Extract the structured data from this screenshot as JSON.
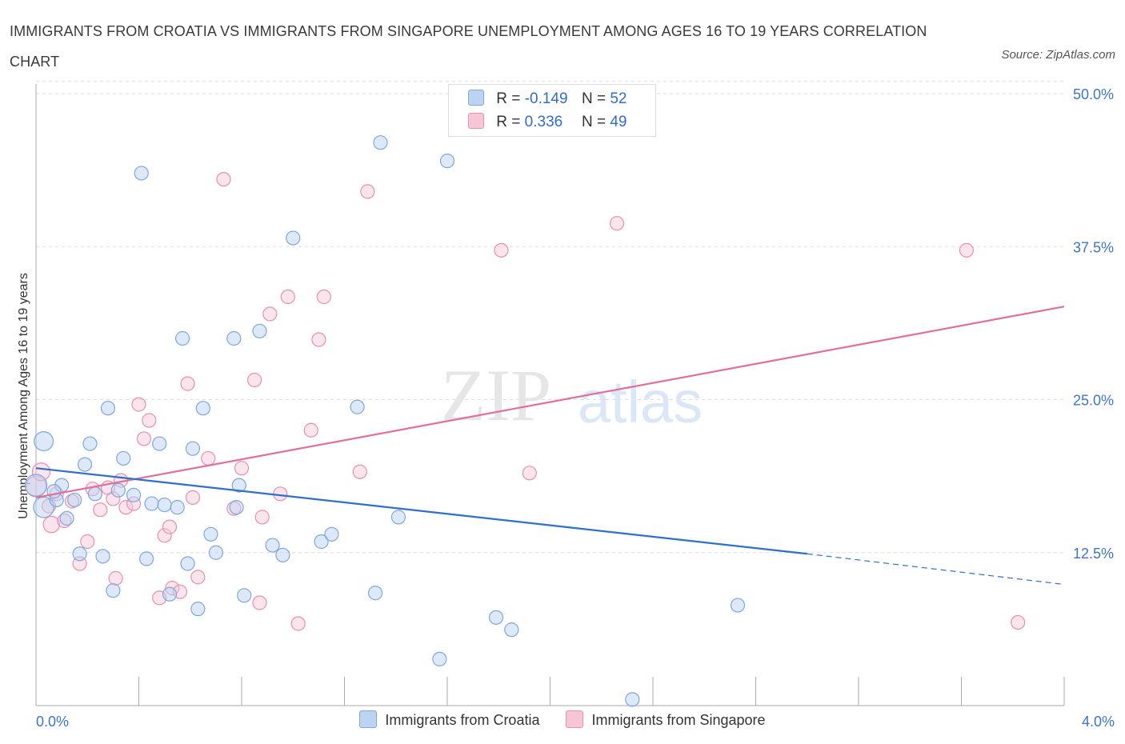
{
  "header": {
    "title": "IMMIGRANTS FROM CROATIA VS IMMIGRANTS FROM SINGAPORE UNEMPLOYMENT AMONG AGES 16 TO 19 YEARS CORRELATION CHART",
    "source": "Source: ZipAtlas.com"
  },
  "watermark": {
    "zip": "ZIP",
    "atlas": "atlas"
  },
  "stats": {
    "r_label": "R =",
    "n_label": "N =",
    "croatia": {
      "r": "-0.149",
      "n": "52"
    },
    "singapore": {
      "r": "0.336",
      "n": "49"
    }
  },
  "legend": {
    "croatia": "Immigrants from Croatia",
    "singapore": "Immigrants from Singapore"
  },
  "colors": {
    "croatia_fill": "#bcd3f2",
    "croatia_stroke": "#7ea7dc",
    "croatia_line": "#2f6fcc",
    "singapore_fill": "#f7c6d6",
    "singapore_stroke": "#e88fb0",
    "singapore_line": "#e0709a",
    "tick_label": "#3f74c9",
    "grid": "#dddddd"
  },
  "chart_data": {
    "type": "scatter",
    "title": "IMMIGRANTS FROM CROATIA VS IMMIGRANTS FROM SINGAPORE UNEMPLOYMENT AMONG AGES 16 TO 19 YEARS CORRELATION CHART",
    "xlabel": "",
    "ylabel": "Unemployment Among Ages 16 to 19 years",
    "xlim": [
      0,
      4.0
    ],
    "ylim": [
      0,
      50
    ],
    "x_tick_labels": [
      "0.0%",
      "4.0%"
    ],
    "y_ticks": [
      12.5,
      25.0,
      37.5,
      50.0
    ],
    "y_tick_labels": [
      "12.5%",
      "25.0%",
      "37.5%",
      "50.0%"
    ],
    "grid": "horizontal dashed",
    "legend_position": "bottom",
    "series": [
      {
        "name": "Immigrants from Croatia",
        "r": -0.149,
        "n": 52,
        "trend": {
          "x0": 0.0,
          "y0": 19.4,
          "x1": 3.0,
          "y1": 12.4,
          "dashed_to_x": 4.0,
          "dashed_to_y": 9.9
        },
        "points": [
          [
            0.0,
            18.0,
            1.6
          ],
          [
            0.03,
            21.6,
            1.4
          ],
          [
            0.03,
            16.2,
            1.5
          ],
          [
            0.08,
            16.8,
            1.0
          ],
          [
            0.1,
            18.0,
            1.0
          ],
          [
            0.12,
            15.3,
            1.0
          ],
          [
            0.15,
            16.8,
            1.0
          ],
          [
            0.17,
            12.4,
            1.0
          ],
          [
            0.19,
            19.7,
            1.0
          ],
          [
            0.21,
            21.4,
            1.0
          ],
          [
            0.23,
            17.3,
            1.0
          ],
          [
            0.26,
            12.2,
            1.0
          ],
          [
            0.28,
            24.3,
            1.0
          ],
          [
            0.3,
            9.4,
            1.0
          ],
          [
            0.32,
            17.6,
            1.0
          ],
          [
            0.34,
            20.2,
            1.0
          ],
          [
            0.38,
            17.2,
            1.0
          ],
          [
            0.41,
            43.5,
            1.0
          ],
          [
            0.43,
            12.0,
            1.0
          ],
          [
            0.45,
            16.5,
            1.0
          ],
          [
            0.48,
            21.4,
            1.0
          ],
          [
            0.5,
            16.4,
            1.0
          ],
          [
            0.52,
            9.1,
            1.0
          ],
          [
            0.55,
            16.2,
            1.0
          ],
          [
            0.57,
            30.0,
            1.0
          ],
          [
            0.59,
            11.6,
            1.0
          ],
          [
            0.61,
            21.0,
            1.0
          ],
          [
            0.63,
            7.9,
            1.0
          ],
          [
            0.65,
            24.3,
            1.0
          ],
          [
            0.68,
            14.0,
            1.0
          ],
          [
            0.7,
            12.5,
            1.0
          ],
          [
            0.77,
            30.0,
            1.0
          ],
          [
            0.79,
            18.0,
            1.0
          ],
          [
            0.81,
            9.0,
            1.0
          ],
          [
            0.87,
            30.6,
            1.0
          ],
          [
            0.92,
            13.1,
            1.0
          ],
          [
            0.96,
            12.3,
            1.0
          ],
          [
            1.0,
            38.2,
            1.0
          ],
          [
            1.11,
            13.4,
            1.0
          ],
          [
            1.15,
            14.0,
            1.0
          ],
          [
            1.25,
            24.4,
            1.0
          ],
          [
            1.32,
            9.2,
            1.0
          ],
          [
            1.34,
            46.0,
            1.0
          ],
          [
            1.41,
            15.4,
            1.0
          ],
          [
            1.57,
            3.8,
            1.0
          ],
          [
            1.6,
            44.5,
            1.0
          ],
          [
            1.79,
            7.2,
            1.0
          ],
          [
            1.85,
            6.2,
            1.0
          ],
          [
            2.32,
            0.5,
            1.0
          ],
          [
            2.73,
            8.2,
            1.0
          ],
          [
            0.78,
            16.2,
            1.0
          ],
          [
            0.07,
            17.5,
            1.0
          ]
        ]
      },
      {
        "name": "Immigrants from Singapore",
        "r": 0.336,
        "n": 49,
        "trend": {
          "x0": 0.0,
          "y0": 17.0,
          "x1": 4.0,
          "y1": 32.6
        },
        "points": [
          [
            0.0,
            17.9,
            1.5
          ],
          [
            0.02,
            19.1,
            1.3
          ],
          [
            0.06,
            14.8,
            1.2
          ],
          [
            0.08,
            17.3,
            1.0
          ],
          [
            0.11,
            15.1,
            1.0
          ],
          [
            0.14,
            16.7,
            1.0
          ],
          [
            0.17,
            11.6,
            1.0
          ],
          [
            0.2,
            13.4,
            1.0
          ],
          [
            0.22,
            17.7,
            1.0
          ],
          [
            0.25,
            16.0,
            1.0
          ],
          [
            0.28,
            17.8,
            1.0
          ],
          [
            0.3,
            16.9,
            1.0
          ],
          [
            0.31,
            10.4,
            1.0
          ],
          [
            0.33,
            18.4,
            1.0
          ],
          [
            0.35,
            16.2,
            1.0
          ],
          [
            0.38,
            16.5,
            1.0
          ],
          [
            0.4,
            24.6,
            1.0
          ],
          [
            0.42,
            21.8,
            1.0
          ],
          [
            0.44,
            23.3,
            1.0
          ],
          [
            0.48,
            8.8,
            1.0
          ],
          [
            0.5,
            13.9,
            1.0
          ],
          [
            0.52,
            14.6,
            1.0
          ],
          [
            0.53,
            9.6,
            1.0
          ],
          [
            0.56,
            9.3,
            1.0
          ],
          [
            0.59,
            26.3,
            1.0
          ],
          [
            0.61,
            17.0,
            1.0
          ],
          [
            0.63,
            10.5,
            1.0
          ],
          [
            0.67,
            20.2,
            1.0
          ],
          [
            0.73,
            43.0,
            1.0
          ],
          [
            0.77,
            16.1,
            1.0
          ],
          [
            0.8,
            19.4,
            1.0
          ],
          [
            0.85,
            26.6,
            1.0
          ],
          [
            0.87,
            8.4,
            1.0
          ],
          [
            0.88,
            15.4,
            1.0
          ],
          [
            0.91,
            32.0,
            1.0
          ],
          [
            0.95,
            17.3,
            1.0
          ],
          [
            0.98,
            33.4,
            1.0
          ],
          [
            1.02,
            6.7,
            1.0
          ],
          [
            1.07,
            22.5,
            1.0
          ],
          [
            1.1,
            29.9,
            1.0
          ],
          [
            1.12,
            33.4,
            1.0
          ],
          [
            1.26,
            19.1,
            1.0
          ],
          [
            1.29,
            42.0,
            1.0
          ],
          [
            1.81,
            37.2,
            1.0
          ],
          [
            1.92,
            19.0,
            1.0
          ],
          [
            2.26,
            39.4,
            1.0
          ],
          [
            3.62,
            37.2,
            1.0
          ],
          [
            3.82,
            6.8,
            1.0
          ],
          [
            0.05,
            16.3,
            1.0
          ]
        ]
      }
    ]
  }
}
